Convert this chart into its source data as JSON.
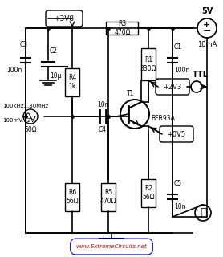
{
  "bg_color": "#f5f5f5",
  "line_color": "#000000",
  "title_text": "",
  "watermark": "www.ExtremeCircuits.net",
  "components": {
    "R3": "470Ω",
    "R4": "1k",
    "R1": "330Ω",
    "R6": "56Ω",
    "R5": "470Ω",
    "R2": "56Ω",
    "C1": "100n",
    "C2": "10μ",
    "C3": "100n",
    "C4": "10n",
    "C5": "10n",
    "T1": "BFR93A"
  },
  "labels": {
    "vcc": "+3V8",
    "v5": "5V",
    "i10ma": "10mA",
    "v2v3": "+2V3",
    "v0v5": "+0V5",
    "ttl": "TTL",
    "input_freq": "100kHz...80MHz",
    "input_amp": "100mV...2V",
    "input_imp": "50Ω"
  }
}
